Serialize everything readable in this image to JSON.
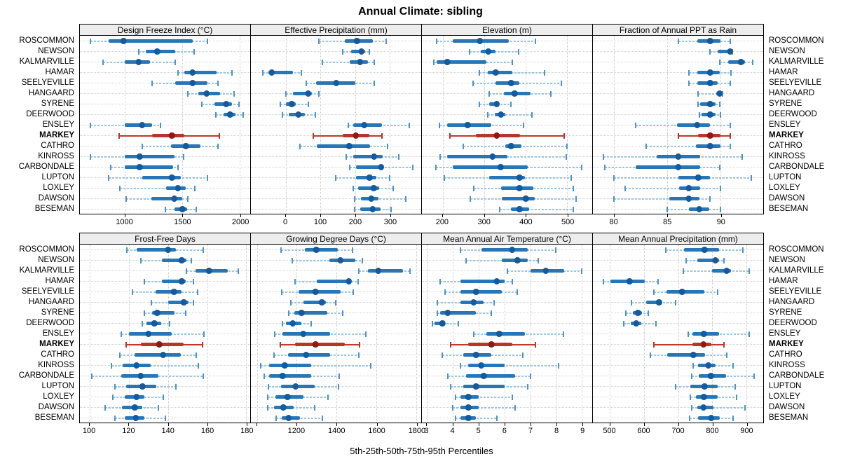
{
  "header": {
    "title": "Annual Climate: sibling"
  },
  "footer": {
    "axis_note": "5th-25th-50th-75th-95th Percentiles"
  },
  "sites": [
    "ROSCOMMON",
    "NEWSON",
    "KALMARVILLE",
    "HAMAR",
    "SEELYEVILLE",
    "HANGAARD",
    "SYRENE",
    "DEERWOOD",
    "ENSLEY",
    "MARKEY",
    "CATHRO",
    "KINROSS",
    "CARBONDALE",
    "LUPTON",
    "LOXLEY",
    "DAWSON",
    "BESEMAN"
  ],
  "highlight_site": "MARKEY",
  "colors": {
    "blue_bar": "#2676b8",
    "blue_dot": "#145a9e",
    "blue_whisker": "#9dc5e0",
    "blue_cap": "#4f93c4",
    "red_bar": "#b5372c",
    "red_dot": "#8f1a10",
    "red_whisker": "#c0392b",
    "red_cap": "#b5372c",
    "grid": "#c9c9c9",
    "strip_bg": "#ededed",
    "border": "#000000"
  },
  "chart_data": {
    "type": "dotplot-percentile-trellis",
    "percentiles": [
      5,
      25,
      50,
      75,
      95
    ],
    "legend_position": "none",
    "grid": "dotted",
    "panels": [
      {
        "id": "design-freeze-index",
        "row": 1,
        "title": "Design Freeze Index (°C)",
        "xmin": 610,
        "xmax": 2090,
        "ticks": [
          1000,
          1500,
          2000
        ],
        "values": [
          [
            700,
            860,
            990,
            1590,
            1720
          ],
          [
            1120,
            1180,
            1280,
            1440,
            1600
          ],
          [
            810,
            1000,
            1120,
            1220,
            1440
          ],
          [
            1460,
            1520,
            1590,
            1800,
            1930
          ],
          [
            1240,
            1440,
            1590,
            1720,
            1810
          ],
          [
            1550,
            1640,
            1710,
            1830,
            1950
          ],
          [
            1670,
            1780,
            1880,
            1930,
            1990
          ],
          [
            1790,
            1860,
            1915,
            1960,
            2030
          ],
          [
            700,
            1000,
            1150,
            1240,
            1310
          ],
          [
            950,
            1240,
            1410,
            1520,
            1820
          ],
          [
            1150,
            1400,
            1530,
            1660,
            1810
          ],
          [
            700,
            1000,
            1130,
            1430,
            1510
          ],
          [
            880,
            1000,
            1130,
            1420,
            1460
          ],
          [
            860,
            1150,
            1410,
            1490,
            1720
          ],
          [
            960,
            1360,
            1460,
            1530,
            1610
          ],
          [
            1010,
            1230,
            1430,
            1500,
            1550
          ],
          [
            1350,
            1430,
            1500,
            1540,
            1620
          ]
        ]
      },
      {
        "id": "effective-precipitation",
        "row": 1,
        "title": "Effective Precipitation (mm)",
        "xmin": -100,
        "xmax": 390,
        "ticks": [
          0,
          100,
          200,
          300
        ],
        "values": [
          [
            95,
            170,
            205,
            250,
            290
          ],
          [
            165,
            188,
            218,
            228,
            240
          ],
          [
            105,
            185,
            214,
            236,
            255
          ],
          [
            -65,
            -50,
            -40,
            20,
            45
          ],
          [
            60,
            88,
            145,
            200,
            255
          ],
          [
            0,
            20,
            65,
            75,
            95
          ],
          [
            -15,
            0,
            17,
            30,
            65
          ],
          [
            -10,
            8,
            37,
            55,
            85
          ],
          [
            180,
            194,
            226,
            277,
            355
          ],
          [
            80,
            165,
            202,
            240,
            278
          ],
          [
            42,
            90,
            183,
            243,
            294
          ],
          [
            175,
            195,
            254,
            280,
            325
          ],
          [
            185,
            202,
            275,
            284,
            365
          ],
          [
            144,
            202,
            241,
            260,
            300
          ],
          [
            195,
            209,
            253,
            270,
            310
          ],
          [
            199,
            216,
            246,
            267,
            345
          ],
          [
            199,
            214,
            250,
            273,
            303
          ]
        ]
      },
      {
        "id": "elevation",
        "row": 1,
        "title": "Elevation (m)",
        "xmin": 150,
        "xmax": 560,
        "ticks": [
          200,
          300,
          400,
          500
        ],
        "values": [
          [
            186,
            225,
            290,
            359,
            423
          ],
          [
            265,
            292,
            310,
            328,
            383
          ],
          [
            178,
            186,
            211,
            306,
            368
          ],
          [
            288,
            309,
            328,
            368,
            445
          ],
          [
            273,
            328,
            365,
            384,
            485
          ],
          [
            312,
            348,
            373,
            412,
            460
          ],
          [
            288,
            312,
            330,
            337,
            365
          ],
          [
            309,
            326,
            340,
            351,
            415
          ],
          [
            193,
            210,
            260,
            317,
            395
          ],
          [
            217,
            280,
            330,
            387,
            493
          ],
          [
            250,
            350,
            365,
            390,
            500
          ],
          [
            194,
            210,
            320,
            356,
            497
          ],
          [
            183,
            225,
            339,
            405,
            535
          ],
          [
            204,
            312,
            385,
            398,
            510
          ],
          [
            275,
            341,
            385,
            418,
            514
          ],
          [
            266,
            342,
            400,
            422,
            522
          ],
          [
            337,
            365,
            385,
            409,
            515
          ]
        ]
      },
      {
        "id": "fraction-ppt-rain",
        "row": 1,
        "title": "Fraction of Annual PPT as Rain",
        "xmin": 78,
        "xmax": 94,
        "ticks": [
          80,
          85,
          90
        ],
        "values": [
          [
            86,
            87.8,
            89,
            90,
            90.9
          ],
          [
            89,
            89.7,
            90.9,
            91,
            91.1
          ],
          [
            89.9,
            90.7,
            91.9,
            92.3,
            93
          ],
          [
            87,
            87.8,
            89,
            89.9,
            91
          ],
          [
            87,
            87.8,
            89,
            89.7,
            90.9
          ],
          [
            87.9,
            89.6,
            89.9,
            90.1,
            90.2
          ],
          [
            87.9,
            88.1,
            89,
            89.5,
            89.9
          ],
          [
            88,
            88.2,
            89,
            89.5,
            90
          ],
          [
            82,
            85.9,
            87.8,
            89,
            90.9
          ],
          [
            86,
            87.9,
            89,
            90,
            90.9
          ],
          [
            83,
            87.7,
            89,
            90,
            90.9
          ],
          [
            79,
            84,
            86,
            88.1,
            92
          ],
          [
            79.1,
            82,
            86,
            88.1,
            89.9
          ],
          [
            80,
            86,
            87.9,
            89,
            92.9
          ],
          [
            81,
            86.1,
            87,
            88.1,
            90
          ],
          [
            80,
            85.2,
            87,
            88,
            89
          ],
          [
            85,
            87,
            88,
            88.9,
            90
          ]
        ]
      },
      {
        "id": "frost-free-days",
        "row": 2,
        "title": "Frost-Free Days",
        "xmin": 95,
        "xmax": 182,
        "ticks": [
          100,
          120,
          140,
          160,
          180
        ],
        "values": [
          [
            119,
            124,
            140,
            144,
            158
          ],
          [
            126,
            137,
            147,
            149.5,
            152
          ],
          [
            149.5,
            154,
            161,
            170.5,
            176
          ],
          [
            128,
            137,
            147,
            149,
            153
          ],
          [
            122,
            133.5,
            143,
            147,
            155
          ],
          [
            131.5,
            140,
            148,
            150.5,
            153
          ],
          [
            128,
            132,
            134.5,
            143.5,
            149
          ],
          [
            127,
            129,
            133,
            136.5,
            141
          ],
          [
            116,
            120,
            130,
            142,
            158.5
          ],
          [
            118.5,
            126,
            135.5,
            148,
            157.5
          ],
          [
            115.5,
            123,
            137.5,
            146.5,
            154.5
          ],
          [
            111,
            117,
            124,
            131,
            155.5
          ],
          [
            101,
            116,
            126,
            135,
            158
          ],
          [
            113,
            118.5,
            127,
            134,
            144
          ],
          [
            112,
            118,
            124,
            128,
            137.5
          ],
          [
            108,
            116.5,
            123,
            127,
            135
          ],
          [
            113,
            118,
            123.5,
            128,
            138.5
          ]
        ]
      },
      {
        "id": "growing-degree-days",
        "row": 2,
        "title": "Growing Degree Days (°C)",
        "xmin": 970,
        "xmax": 1825,
        "ticks": [
          1200,
          1400,
          1600,
          1800
        ],
        "unlabeled_ticks": [
          1000
        ],
        "values": [
          [
            1122,
            1240,
            1298,
            1405,
            1480
          ],
          [
            1178,
            1364,
            1420,
            1496,
            1528
          ],
          [
            1512,
            1557,
            1610,
            1734,
            1768
          ],
          [
            1190,
            1300,
            1462,
            1476,
            1510
          ],
          [
            1124,
            1208,
            1294,
            1422,
            1482
          ],
          [
            1170,
            1235,
            1326,
            1346,
            1394
          ],
          [
            1159,
            1188,
            1224,
            1352,
            1432
          ],
          [
            1128,
            1147,
            1180,
            1223,
            1274
          ],
          [
            1089,
            1128,
            1233,
            1367,
            1547
          ],
          [
            1116,
            1191,
            1294,
            1440,
            1516
          ],
          [
            1087,
            1157,
            1247,
            1367,
            1513
          ],
          [
            1021,
            1060,
            1139,
            1274,
            1572
          ],
          [
            1036,
            1060,
            1130,
            1274,
            1414
          ],
          [
            1057,
            1122,
            1194,
            1291,
            1411
          ],
          [
            1054,
            1092,
            1153,
            1235,
            1358
          ],
          [
            1054,
            1087,
            1133,
            1186,
            1291
          ],
          [
            1095,
            1124,
            1159,
            1215,
            1328
          ]
        ]
      },
      {
        "id": "mean-annual-air-temp",
        "row": 2,
        "title": "Mean Annual Air Temperature (°C)",
        "xmin": 2.8,
        "xmax": 9.4,
        "ticks": [
          3,
          4,
          5,
          6,
          7,
          8,
          9
        ],
        "values": [
          [
            4.3,
            5.1,
            6.3,
            6.9,
            8.0
          ],
          [
            4.5,
            5.9,
            6.5,
            6.9,
            7.3
          ],
          [
            6.1,
            7.0,
            7.6,
            8.3,
            9.0
          ],
          [
            3.5,
            4.3,
            5.7,
            6.0,
            6.3
          ],
          [
            3.7,
            4.3,
            4.9,
            5.9,
            6.5
          ],
          [
            3.4,
            4.3,
            4.8,
            5.2,
            5.6
          ],
          [
            3.4,
            3.5,
            3.8,
            4.9,
            5.5
          ],
          [
            3.2,
            3.3,
            3.6,
            3.7,
            4.2
          ],
          [
            4.8,
            5.3,
            5.8,
            6.8,
            8.3
          ],
          [
            3.9,
            4.6,
            5.5,
            6.3,
            7.2
          ],
          [
            3.6,
            4.4,
            4.9,
            5.5,
            6.7
          ],
          [
            4.3,
            4.6,
            5.1,
            6.0,
            8.1
          ],
          [
            3.8,
            4.5,
            5.2,
            6.4,
            7.0
          ],
          [
            3.9,
            4.4,
            4.9,
            6.0,
            6.9
          ],
          [
            4.1,
            4.3,
            4.6,
            5.0,
            6.3
          ],
          [
            4.0,
            4.3,
            4.6,
            5.0,
            6.4
          ],
          [
            4.1,
            4.3,
            4.6,
            4.9,
            5.7
          ]
        ]
      },
      {
        "id": "mean-annual-precip",
        "row": 2,
        "title": "Mean Annual Precipitation (mm)",
        "xmin": 450,
        "xmax": 950,
        "ticks": [
          500,
          600,
          700,
          800,
          900
        ],
        "values": [
          [
            665,
            717,
            778,
            820,
            890
          ],
          [
            724,
            757,
            810,
            820,
            835
          ],
          [
            715,
            800,
            843,
            855,
            908
          ],
          [
            480,
            502,
            558,
            602,
            642
          ],
          [
            630,
            667,
            712,
            778,
            817
          ],
          [
            563,
            606,
            644,
            653,
            693
          ],
          [
            546,
            568,
            582,
            594,
            612
          ],
          [
            540,
            561,
            577,
            592,
            636
          ],
          [
            730,
            742,
            776,
            820,
            908
          ],
          [
            630,
            742,
            775,
            797,
            835
          ],
          [
            618,
            669,
            745,
            780,
            842
          ],
          [
            744,
            759,
            789,
            810,
            862
          ],
          [
            740,
            761,
            796,
            841,
            924
          ],
          [
            692,
            736,
            778,
            817,
            867
          ],
          [
            736,
            752,
            776,
            817,
            872
          ],
          [
            740,
            757,
            775,
            803,
            897
          ],
          [
            733,
            759,
            797,
            822,
            862
          ]
        ]
      }
    ]
  }
}
